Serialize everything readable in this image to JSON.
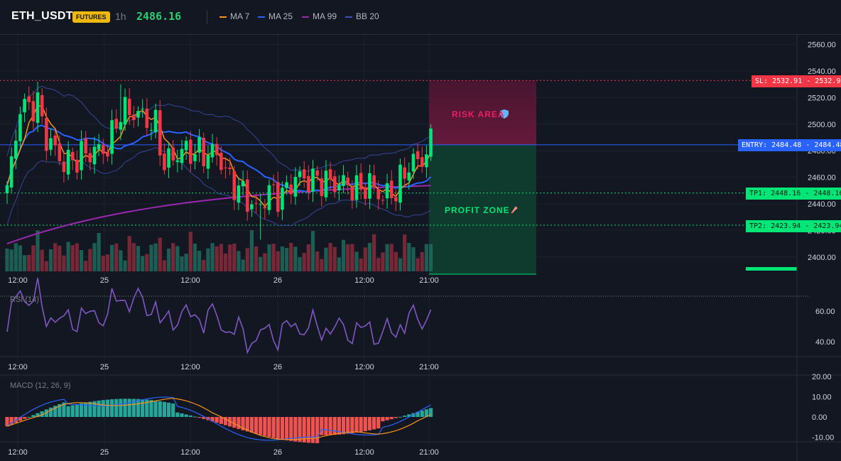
{
  "header": {
    "symbol": "ETH_USDT",
    "badge": "FUTURES",
    "interval": "1h",
    "last_price": "2486.16"
  },
  "indicators": [
    {
      "label": "MA 7",
      "color": "#f7931a"
    },
    {
      "label": "MA 25",
      "color": "#2962ff"
    },
    {
      "label": "MA 99",
      "color": "#9c27b0"
    },
    {
      "label": "BB 20",
      "color": "#3f51b5"
    }
  ],
  "price_axis": {
    "ticks": [
      "2560.00",
      "2540.00",
      "2520.00",
      "2500.00",
      "2480.00",
      "2460.00",
      "2440.00",
      "2420.00",
      "2400.00"
    ],
    "ticks_values": [
      2560,
      2540,
      2520,
      2500,
      2480,
      2460,
      2440,
      2420,
      2400
    ]
  },
  "time_axis": {
    "labels": [
      "12:00",
      "25",
      "12:00",
      "26",
      "12:00",
      "21:00"
    ]
  },
  "zones": {
    "risk_label": "RISK AREA",
    "profit_label": "PROFIT ZONE",
    "risk_icon": "shield-icon",
    "profit_icon": "rocket-icon"
  },
  "trade_levels": {
    "sl": {
      "label": "SL: 2532.91",
      "price": "2532.91",
      "value": 2532.91,
      "color": "#f23645"
    },
    "entry": {
      "label": "ENTRY: 2484.48",
      "price": "2484.48",
      "value": 2484.48,
      "color": "#2962ff"
    },
    "tp1": {
      "label": "TP1: 2448.16",
      "price": "2448.16",
      "value": 2448.16,
      "color": "#00e676"
    },
    "tp2": {
      "label": "TP2: 2423.94",
      "price": "2423.94",
      "value": 2423.94,
      "color": "#00e676"
    }
  },
  "rsi": {
    "label": "RSI (14)",
    "ticks": [
      "60.00",
      "40.00"
    ],
    "ticks_values": [
      60,
      40
    ]
  },
  "macd": {
    "label": "MACD (12, 26, 9)",
    "ticks": [
      "20.00",
      "10.00",
      "0.00",
      "-10.00"
    ],
    "ticks_values": [
      20,
      10,
      0,
      -10
    ]
  },
  "colors": {
    "up": "#00e676",
    "down": "#f23645",
    "background": "#131722"
  },
  "chart_data": [
    {
      "type": "candlestick",
      "title": "ETH_USDT",
      "ylim": [
        2400,
        2560
      ],
      "x": [
        "12:00",
        "25",
        "12:00",
        "26",
        "12:00",
        "21:00"
      ],
      "last_price": 2486.16
    },
    {
      "type": "line",
      "title": "RSI (14)",
      "ylim": [
        30,
        70
      ]
    },
    {
      "type": "bar",
      "title": "MACD (12, 26, 9)",
      "ylim": [
        -10,
        20
      ]
    }
  ]
}
